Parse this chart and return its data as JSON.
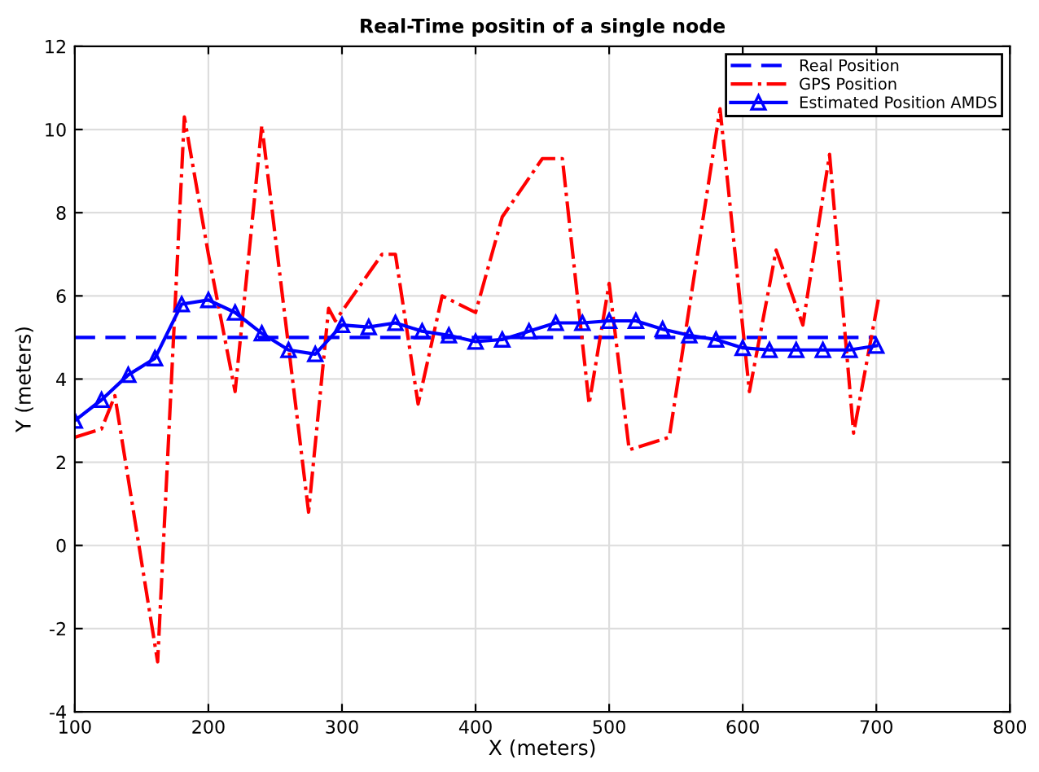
{
  "chart_data": {
    "type": "line",
    "title": "Real-Time positin of a single node",
    "xlabel": "X (meters)",
    "ylabel": "Y (meters)",
    "xlim": [
      100,
      800
    ],
    "xticks": [
      100,
      200,
      300,
      400,
      500,
      600,
      700,
      800
    ],
    "ylim": [
      -4,
      12
    ],
    "yticks": [
      -4,
      -2,
      0,
      2,
      4,
      6,
      8,
      10,
      12
    ],
    "grid": true,
    "legend": "top right",
    "series": [
      {
        "name": "Real Position",
        "color": "#0000ff",
        "line_style": "dashed",
        "marker": "none",
        "x": [
          100,
          700
        ],
        "values": [
          5,
          5
        ]
      },
      {
        "name": "GPS Position",
        "color": "#ff0000",
        "line_style": "dashdot",
        "marker": "none",
        "x": [
          100,
          120,
          130,
          162,
          182,
          200,
          220,
          240,
          275,
          290,
          295,
          330,
          340,
          357,
          375,
          400,
          420,
          450,
          465,
          485,
          500,
          515,
          545,
          583,
          605,
          625,
          645,
          665,
          683,
          702
        ],
        "values": [
          2.6,
          2.8,
          3.6,
          -2.8,
          10.3,
          7.0,
          3.7,
          10.1,
          0.8,
          5.7,
          5.4,
          7.0,
          7.0,
          3.4,
          6.0,
          5.6,
          7.9,
          9.3,
          9.3,
          3.4,
          6.3,
          2.3,
          2.6,
          10.5,
          3.7,
          7.1,
          5.3,
          9.4,
          2.7,
          6.0
        ]
      },
      {
        "name": "Estimated Position AMDS",
        "color": "#0000ff",
        "line_style": "solid",
        "marker": "triangle",
        "x": [
          100,
          120,
          140,
          160,
          180,
          200,
          220,
          240,
          260,
          280,
          300,
          320,
          340,
          360,
          380,
          400,
          420,
          440,
          460,
          480,
          500,
          520,
          540,
          560,
          580,
          600,
          620,
          640,
          660,
          680,
          700
        ],
        "values": [
          3.0,
          3.5,
          4.1,
          4.5,
          5.8,
          5.9,
          5.6,
          5.1,
          4.7,
          4.6,
          5.3,
          5.25,
          5.35,
          5.15,
          5.05,
          4.9,
          4.95,
          5.15,
          5.35,
          5.35,
          5.4,
          5.4,
          5.2,
          5.05,
          4.95,
          4.75,
          4.7,
          4.7,
          4.7,
          4.7,
          4.8
        ]
      }
    ]
  }
}
